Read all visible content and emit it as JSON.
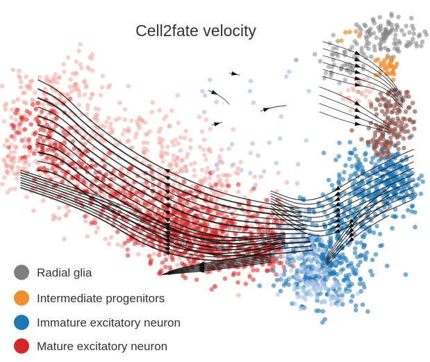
{
  "chart_data": {
    "type": "scatter",
    "title": "Cell2fate velocity",
    "xlabel": "",
    "ylabel": "",
    "grid": false,
    "axes_visible": false,
    "legend_placement": "bottom-left",
    "overlay": "velocity streamlines with arrowheads",
    "series": [
      {
        "name": "Radial glia",
        "color": "#7f7f7f",
        "approx_count": 140,
        "description_region": "top-right cluster"
      },
      {
        "name": "Intermediate progenitors",
        "color": "#f28e2b",
        "approx_count": 30,
        "description_region": "upper-right, between radial glia and neurons"
      },
      {
        "name": "Immature excitatory neuron",
        "color": "#1f77b4",
        "approx_count": 600,
        "description_region": "right-center to lower-center"
      },
      {
        "name": "Mature excitatory neuron",
        "color": "#d62728",
        "approx_count": 1300,
        "description_region": "left and center"
      }
    ],
    "trajectory_colors": {
      "brown_transition": "#8c564b",
      "light_blue_scatter": "#aec7e8",
      "light_red_scatter": "#f2a49b"
    }
  }
}
